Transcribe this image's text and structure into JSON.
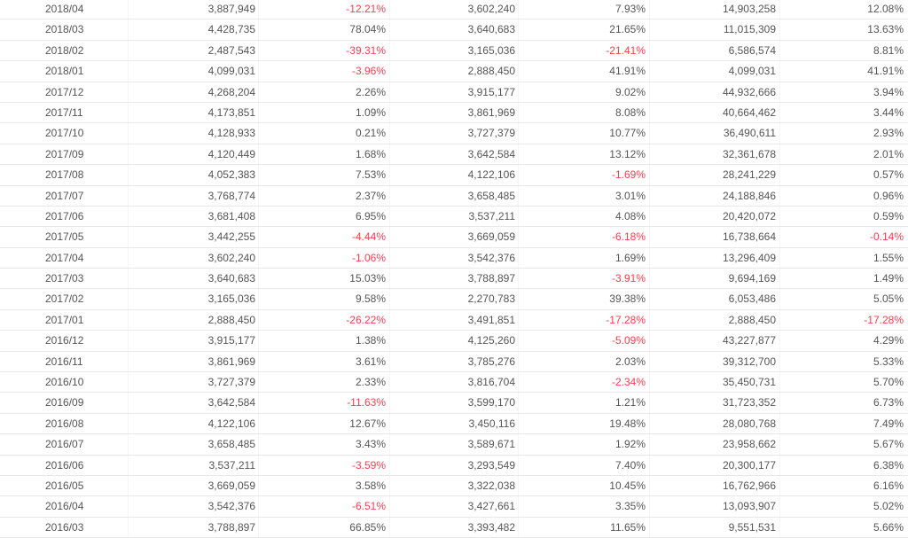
{
  "colors": {
    "text": "#555555",
    "negative": "#ff3b4f",
    "border": "#e8e8e8"
  },
  "rows": [
    [
      "2018/04",
      "3,887,949",
      "-12.21%",
      "3,602,240",
      "7.93%",
      "14,903,258",
      "12.08%"
    ],
    [
      "2018/03",
      "4,428,735",
      "78.04%",
      "3,640,683",
      "21.65%",
      "11,015,309",
      "13.63%"
    ],
    [
      "2018/02",
      "2,487,543",
      "-39.31%",
      "3,165,036",
      "-21.41%",
      "6,586,574",
      "8.81%"
    ],
    [
      "2018/01",
      "4,099,031",
      "-3.96%",
      "2,888,450",
      "41.91%",
      "4,099,031",
      "41.91%"
    ],
    [
      "2017/12",
      "4,268,204",
      "2.26%",
      "3,915,177",
      "9.02%",
      "44,932,666",
      "3.94%"
    ],
    [
      "2017/11",
      "4,173,851",
      "1.09%",
      "3,861,969",
      "8.08%",
      "40,664,462",
      "3.44%"
    ],
    [
      "2017/10",
      "4,128,933",
      "0.21%",
      "3,727,379",
      "10.77%",
      "36,490,611",
      "2.93%"
    ],
    [
      "2017/09",
      "4,120,449",
      "1.68%",
      "3,642,584",
      "13.12%",
      "32,361,678",
      "2.01%"
    ],
    [
      "2017/08",
      "4,052,383",
      "7.53%",
      "4,122,106",
      "-1.69%",
      "28,241,229",
      "0.57%"
    ],
    [
      "2017/07",
      "3,768,774",
      "2.37%",
      "3,658,485",
      "3.01%",
      "24,188,846",
      "0.96%"
    ],
    [
      "2017/06",
      "3,681,408",
      "6.95%",
      "3,537,211",
      "4.08%",
      "20,420,072",
      "0.59%"
    ],
    [
      "2017/05",
      "3,442,255",
      "-4.44%",
      "3,669,059",
      "-6.18%",
      "16,738,664",
      "-0.14%"
    ],
    [
      "2017/04",
      "3,602,240",
      "-1.06%",
      "3,542,376",
      "1.69%",
      "13,296,409",
      "1.55%"
    ],
    [
      "2017/03",
      "3,640,683",
      "15.03%",
      "3,788,897",
      "-3.91%",
      "9,694,169",
      "1.49%"
    ],
    [
      "2017/02",
      "3,165,036",
      "9.58%",
      "2,270,783",
      "39.38%",
      "6,053,486",
      "5.05%"
    ],
    [
      "2017/01",
      "2,888,450",
      "-26.22%",
      "3,491,851",
      "-17.28%",
      "2,888,450",
      "-17.28%"
    ],
    [
      "2016/12",
      "3,915,177",
      "1.38%",
      "4,125,260",
      "-5.09%",
      "43,227,877",
      "4.29%"
    ],
    [
      "2016/11",
      "3,861,969",
      "3.61%",
      "3,785,276",
      "2.03%",
      "39,312,700",
      "5.33%"
    ],
    [
      "2016/10",
      "3,727,379",
      "2.33%",
      "3,816,704",
      "-2.34%",
      "35,450,731",
      "5.70%"
    ],
    [
      "2016/09",
      "3,642,584",
      "-11.63%",
      "3,599,170",
      "1.21%",
      "31,723,352",
      "6.73%"
    ],
    [
      "2016/08",
      "4,122,106",
      "12.67%",
      "3,450,116",
      "19.48%",
      "28,080,768",
      "7.49%"
    ],
    [
      "2016/07",
      "3,658,485",
      "3.43%",
      "3,589,671",
      "1.92%",
      "23,958,662",
      "5.67%"
    ],
    [
      "2016/06",
      "3,537,211",
      "-3.59%",
      "3,293,549",
      "7.40%",
      "20,300,177",
      "6.38%"
    ],
    [
      "2016/05",
      "3,669,059",
      "3.58%",
      "3,322,038",
      "10.45%",
      "16,762,966",
      "6.16%"
    ],
    [
      "2016/04",
      "3,542,376",
      "-6.51%",
      "3,427,661",
      "3.35%",
      "13,093,907",
      "5.02%"
    ],
    [
      "2016/03",
      "3,788,897",
      "66.85%",
      "3,393,482",
      "11.65%",
      "9,551,531",
      "5.66%"
    ]
  ]
}
